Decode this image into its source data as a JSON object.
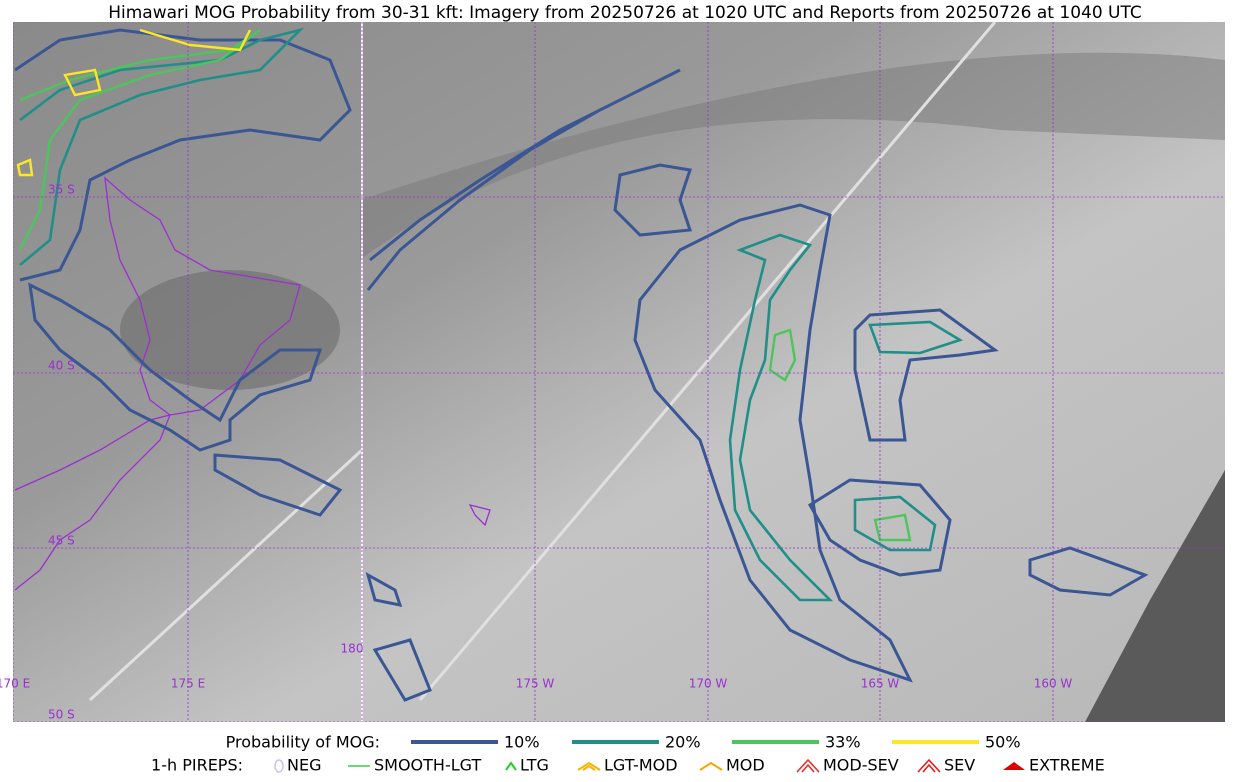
{
  "title": "Himawari MOG Probability from 30-31 kft: Imagery from 20250726 at 1020 UTC and Reports from 20250726 at 1040 UTC",
  "map": {
    "lat_labels": [
      "35 S",
      "40 S",
      "45 S",
      "50 S"
    ],
    "lon_labels": [
      "170 E",
      "175 E",
      "180",
      "175 W",
      "170 W",
      "165 W",
      "160 W"
    ]
  },
  "legend": {
    "probability": {
      "label": "Probability of MOG:",
      "entries": [
        {
          "label": "10%",
          "color": "#3b5694"
        },
        {
          "label": "20%",
          "color": "#1f8f88"
        },
        {
          "label": "33%",
          "color": "#4cc55c"
        },
        {
          "label": "50%",
          "color": "#fde725"
        }
      ]
    },
    "pireps": {
      "label": "1-h PIREPS:",
      "entries": [
        {
          "label": "NEG",
          "color": "#c8c0f0"
        },
        {
          "label": "SMOOTH-LGT",
          "color": "#3ad13a"
        },
        {
          "label": "LTG",
          "color": "#1ed11e"
        },
        {
          "label": "LGT-MOD",
          "color": "#f5b400"
        },
        {
          "label": "MOD",
          "color": "#f5a800"
        },
        {
          "label": "MOD-SEV",
          "color": "#e83030"
        },
        {
          "label": "SEV",
          "color": "#e02020"
        },
        {
          "label": "EXTREME",
          "color": "#e00000"
        }
      ]
    }
  }
}
